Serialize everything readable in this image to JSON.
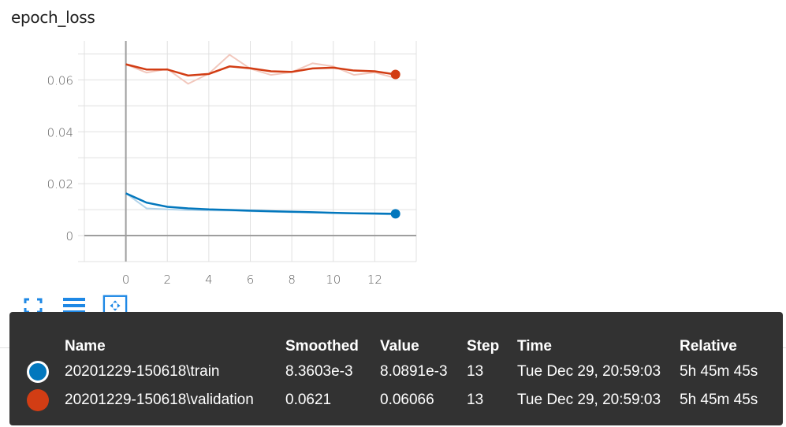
{
  "card": {
    "title": "epoch_loss"
  },
  "colors": {
    "train": "#0277bd",
    "train_raw": "#b3d4ea",
    "validation": "#d23d14",
    "validation_raw": "#f2c8bd",
    "axis": "#9e9e9e",
    "grid": "#e0e0e0",
    "tooltip_bg": "#323232"
  },
  "chart_data": {
    "type": "line",
    "title": "epoch_loss",
    "xlabel": "",
    "ylabel": "",
    "xlim": [
      -2,
      14
    ],
    "ylim": [
      -0.01,
      0.075
    ],
    "x_ticks": [
      0,
      2,
      4,
      6,
      8,
      10,
      12
    ],
    "y_ticks": [
      0,
      0.02,
      0.04,
      0.06
    ],
    "x_tick_labels": [
      "0",
      "2",
      "4",
      "6",
      "8",
      "10",
      "12"
    ],
    "y_tick_labels": [
      "0",
      "0.02",
      "0.04",
      "0.06"
    ],
    "grid": true,
    "series": [
      {
        "name": "20201229-150618\\train",
        "x": [
          0,
          1,
          2,
          3,
          4,
          5,
          6,
          7,
          8,
          9,
          10,
          11,
          12,
          13
        ],
        "smoothed": [
          0.0163,
          0.0127,
          0.0111,
          0.0105,
          0.0101,
          0.0099,
          0.0096,
          0.0094,
          0.0092,
          0.009,
          0.0088,
          0.0086,
          0.0085,
          0.0084
        ],
        "raw": [
          0.0163,
          0.0105,
          0.0101,
          0.0098,
          0.0097,
          0.0096,
          0.0094,
          0.0092,
          0.009,
          0.0089,
          0.0087,
          0.0085,
          0.0083,
          0.0081
        ]
      },
      {
        "name": "20201229-150618\\validation",
        "x": [
          0,
          1,
          2,
          3,
          4,
          5,
          6,
          7,
          8,
          9,
          10,
          11,
          12,
          13
        ],
        "smoothed": [
          0.066,
          0.064,
          0.064,
          0.0617,
          0.0623,
          0.0652,
          0.0645,
          0.0633,
          0.0631,
          0.0644,
          0.0647,
          0.0636,
          0.0633,
          0.0621
        ],
        "raw": [
          0.066,
          0.0628,
          0.0642,
          0.0585,
          0.0624,
          0.0697,
          0.0643,
          0.0619,
          0.063,
          0.0664,
          0.0652,
          0.0619,
          0.0629,
          0.0607
        ]
      }
    ]
  },
  "toolbar": {
    "icons": [
      "fullscreen-icon",
      "list-icon",
      "fit-domain-icon"
    ]
  },
  "tooltip": {
    "headers": {
      "name": "Name",
      "smoothed": "Smoothed",
      "value": "Value",
      "step": "Step",
      "time": "Time",
      "relative": "Relative"
    },
    "rows": [
      {
        "name": "20201229-150618\\train",
        "smoothed": "8.3603e-3",
        "value": "8.0891e-3",
        "step": "13",
        "time": "Tue Dec 29, 20:59:03",
        "relative": "5h 45m 45s"
      },
      {
        "name": "20201229-150618\\validation",
        "smoothed": "0.0621",
        "value": "0.06066",
        "step": "13",
        "time": "Tue Dec 29, 20:59:03",
        "relative": "5h 45m 45s"
      }
    ]
  }
}
